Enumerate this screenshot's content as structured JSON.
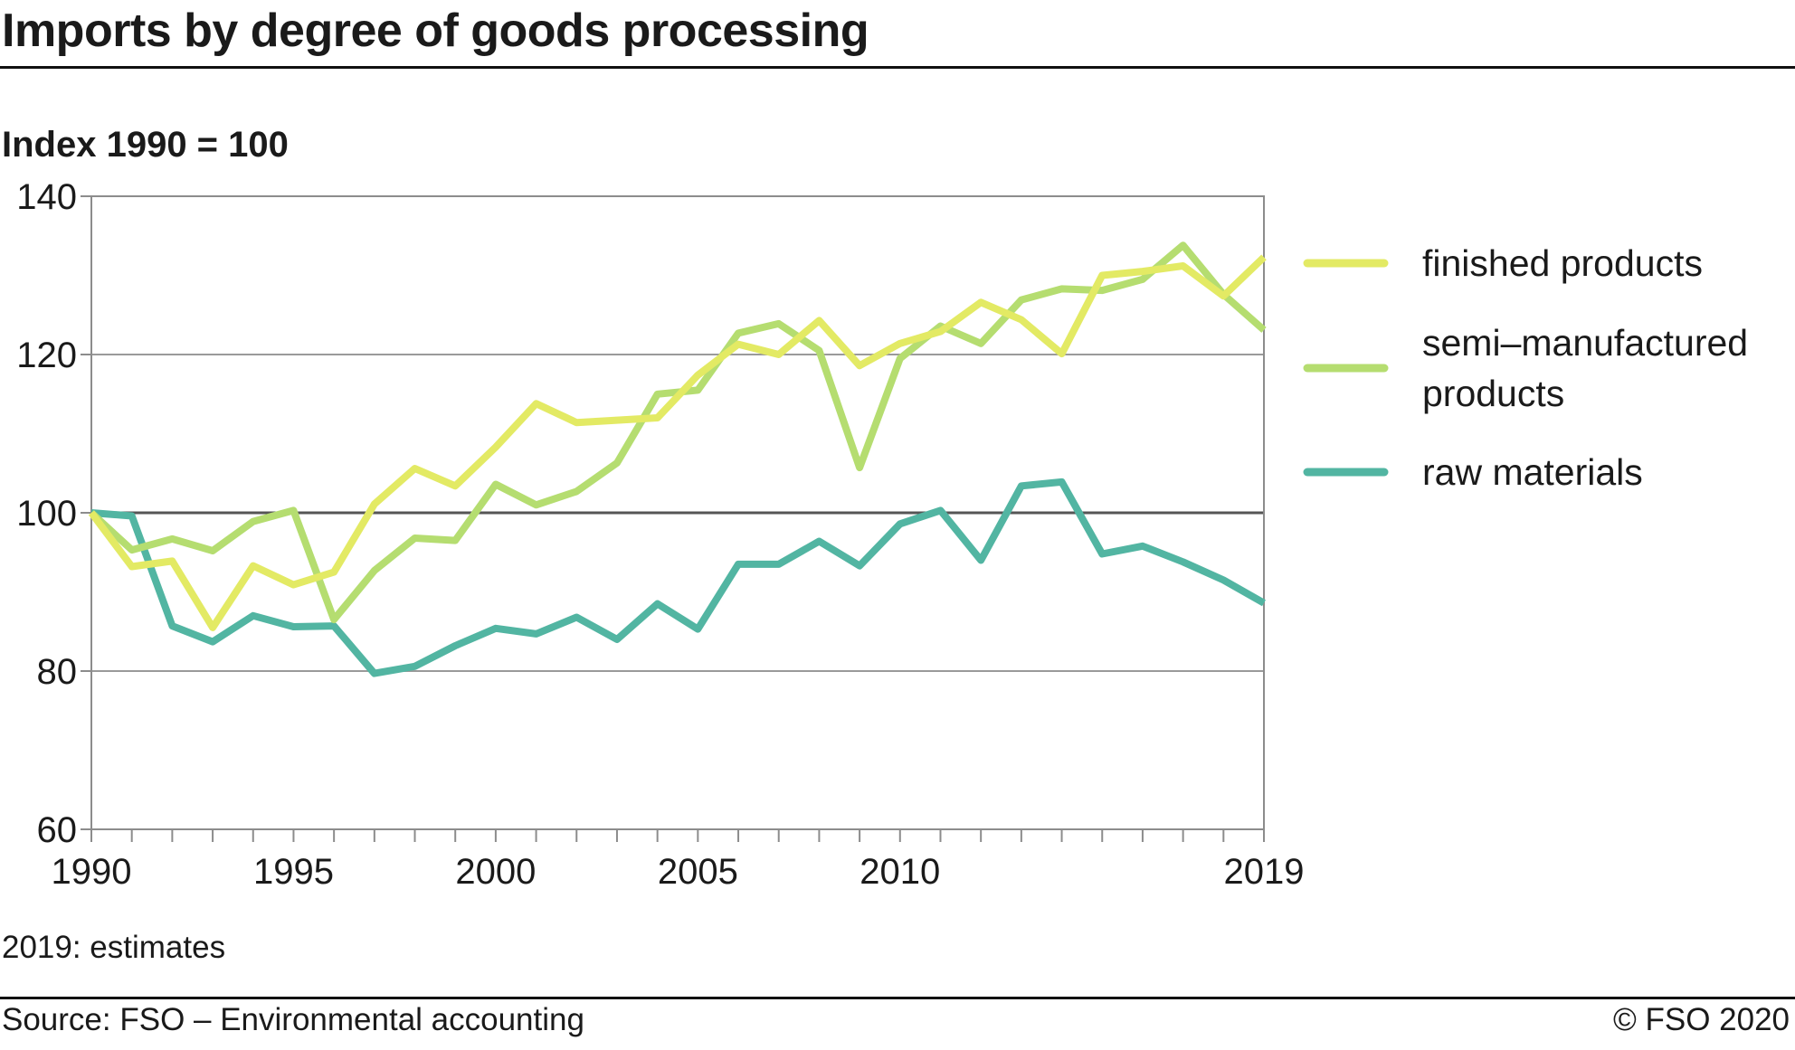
{
  "header": {
    "title": "Imports by degree of goods processing",
    "subtitle": "Index 1990 = 100"
  },
  "footer": {
    "note": "2019: estimates",
    "source": "Source: FSO – Environmental accounting",
    "copyright": "© FSO 2020"
  },
  "chart_data": {
    "type": "line",
    "title": "Imports by degree of goods processing",
    "ylabel": "Index 1990 = 100",
    "xlabel": "",
    "xlim": [
      1990,
      2019
    ],
    "ylim": [
      60,
      140
    ],
    "y_ticks": [
      60,
      80,
      100,
      120,
      140
    ],
    "x_tick_labels": [
      1990,
      1995,
      2000,
      2005,
      2010,
      2019
    ],
    "reference_line": 100,
    "grid": true,
    "legend_position": "right",
    "x": [
      1990,
      1991,
      1992,
      1993,
      1994,
      1995,
      1996,
      1997,
      1998,
      1999,
      2000,
      2001,
      2002,
      2003,
      2004,
      2005,
      2006,
      2007,
      2008,
      2009,
      2010,
      2011,
      2012,
      2013,
      2014,
      2015,
      2016,
      2017,
      2018,
      2019
    ],
    "series": [
      {
        "name": "finished products",
        "color": "#e3ea64",
        "values": [
          100,
          93.2,
          93.9,
          85.5,
          93.3,
          90.9,
          92.5,
          101.1,
          105.6,
          103.4,
          108.3,
          113.8,
          111.4,
          111.7,
          112.0,
          117.4,
          121.3,
          120.0,
          124.3,
          118.6,
          121.4,
          122.9,
          126.6,
          124.4,
          120.1,
          130.0,
          130.5,
          131.2,
          127.4,
          132.3
        ]
      },
      {
        "name": "semi–manufactured\nproducts",
        "color": "#b5dd70",
        "values": [
          100,
          95.3,
          96.7,
          95.2,
          98.9,
          100.3,
          86.5,
          92.7,
          96.8,
          96.5,
          103.6,
          101.0,
          102.7,
          106.3,
          115.0,
          115.5,
          122.7,
          123.9,
          120.5,
          105.7,
          119.5,
          123.6,
          121.4,
          126.9,
          128.3,
          128.1,
          129.5,
          133.8,
          127.6,
          123.1
        ]
      },
      {
        "name": "raw materials",
        "color": "#52b5a2",
        "values": [
          100,
          99.6,
          85.7,
          83.7,
          87.0,
          85.6,
          85.7,
          79.7,
          80.6,
          83.2,
          85.4,
          84.7,
          86.8,
          84.0,
          88.5,
          85.3,
          93.5,
          93.5,
          96.4,
          93.3,
          98.6,
          100.3,
          94.0,
          103.4,
          103.9,
          94.8,
          95.8,
          93.8,
          91.5,
          88.6
        ]
      }
    ]
  }
}
